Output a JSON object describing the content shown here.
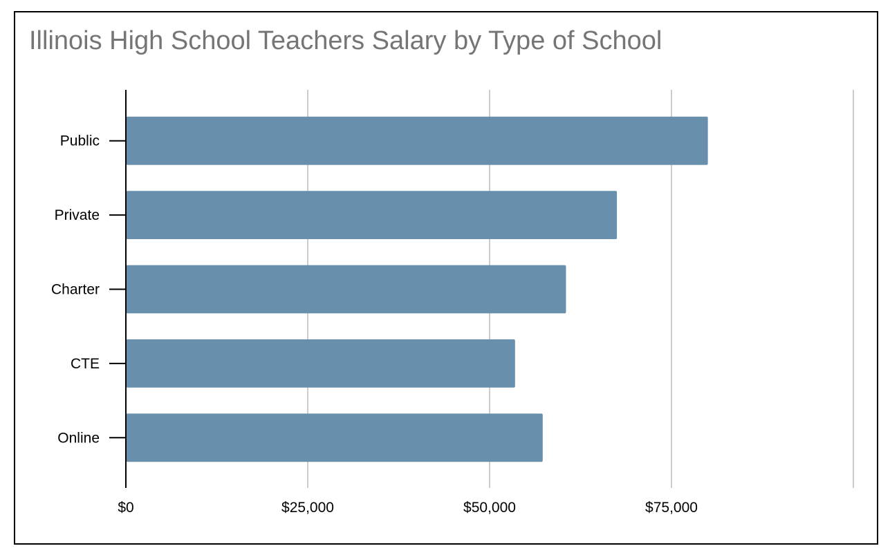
{
  "chart_data": {
    "type": "bar",
    "orientation": "horizontal",
    "title": "Illinois High School Teachers Salary by Type of School",
    "categories": [
      "Public",
      "Private",
      "Charter",
      "CTE",
      "Online"
    ],
    "values": [
      80000,
      67500,
      60500,
      53500,
      57300
    ],
    "xlabel": "",
    "ylabel": "",
    "xlim": [
      0,
      100000
    ],
    "xticks": [
      0,
      25000,
      50000,
      75000
    ],
    "xtick_labels": [
      "$0",
      "$25,000",
      "$50,000",
      "$75,000"
    ],
    "grid": true,
    "legend": "none",
    "colors": {
      "bar": "#6890ac",
      "grid": "#cccccc",
      "axis": "#000000",
      "title": "#757575"
    }
  }
}
